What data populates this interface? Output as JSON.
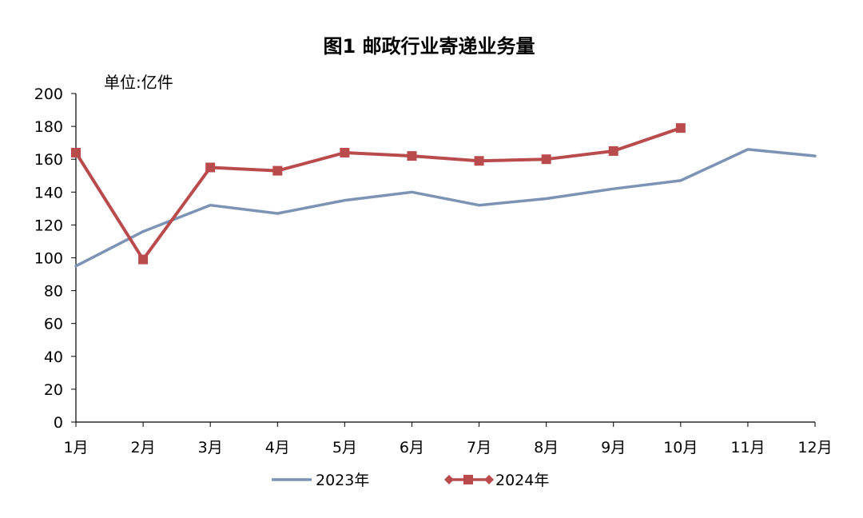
{
  "chart_data": {
    "type": "line",
    "title": "图1    邮政行业寄递业务量",
    "unit_label": "单位:亿件",
    "xlabel": "",
    "ylabel": "",
    "categories": [
      "1月",
      "2月",
      "3月",
      "4月",
      "5月",
      "6月",
      "7月",
      "8月",
      "9月",
      "10月",
      "11月",
      "12月"
    ],
    "ylim": [
      0,
      200
    ],
    "yticks": [
      0,
      20,
      40,
      60,
      80,
      100,
      120,
      140,
      160,
      180,
      200
    ],
    "grid": false,
    "legend_position": "bottom",
    "series": [
      {
        "name": "2023年",
        "color": "#7c93b5",
        "marker": "none",
        "values": [
          95,
          116,
          132,
          127,
          135,
          140,
          132,
          136,
          142,
          147,
          166,
          162
        ]
      },
      {
        "name": "2024年",
        "color": "#b94b4d",
        "marker": "square",
        "values": [
          164,
          99,
          155,
          153,
          164,
          162,
          159,
          160,
          165,
          179,
          null,
          null
        ]
      }
    ]
  }
}
